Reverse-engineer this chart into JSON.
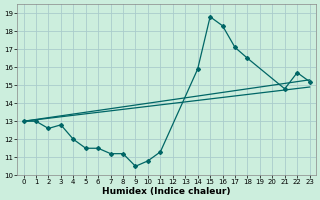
{
  "xlabel": "Humidex (Indice chaleur)",
  "bg_color": "#cceedd",
  "grid_color": "#aacccc",
  "line_color": "#006666",
  "xlim": [
    -0.5,
    23.5
  ],
  "ylim": [
    10,
    19.5
  ],
  "xticks": [
    0,
    1,
    2,
    3,
    4,
    5,
    6,
    7,
    8,
    9,
    10,
    11,
    12,
    13,
    14,
    15,
    16,
    17,
    18,
    19,
    20,
    21,
    22,
    23
  ],
  "yticks": [
    10,
    11,
    12,
    13,
    14,
    15,
    16,
    17,
    18,
    19
  ],
  "line_spike_x": [
    0,
    1,
    2,
    3,
    4,
    5,
    6,
    7,
    8,
    9,
    10,
    11,
    14,
    15,
    16,
    17,
    18,
    21,
    22,
    23
  ],
  "line_spike_y": [
    13.0,
    13.0,
    12.6,
    12.8,
    12.0,
    11.5,
    11.5,
    11.2,
    11.2,
    10.5,
    10.8,
    11.3,
    15.9,
    18.8,
    18.3,
    17.1,
    16.5,
    14.8,
    15.7,
    15.2
  ],
  "line_trend1_x": [
    0,
    23
  ],
  "line_trend1_y": [
    13.0,
    14.9
  ],
  "line_trend2_x": [
    0,
    23
  ],
  "line_trend2_y": [
    13.0,
    15.3
  ]
}
